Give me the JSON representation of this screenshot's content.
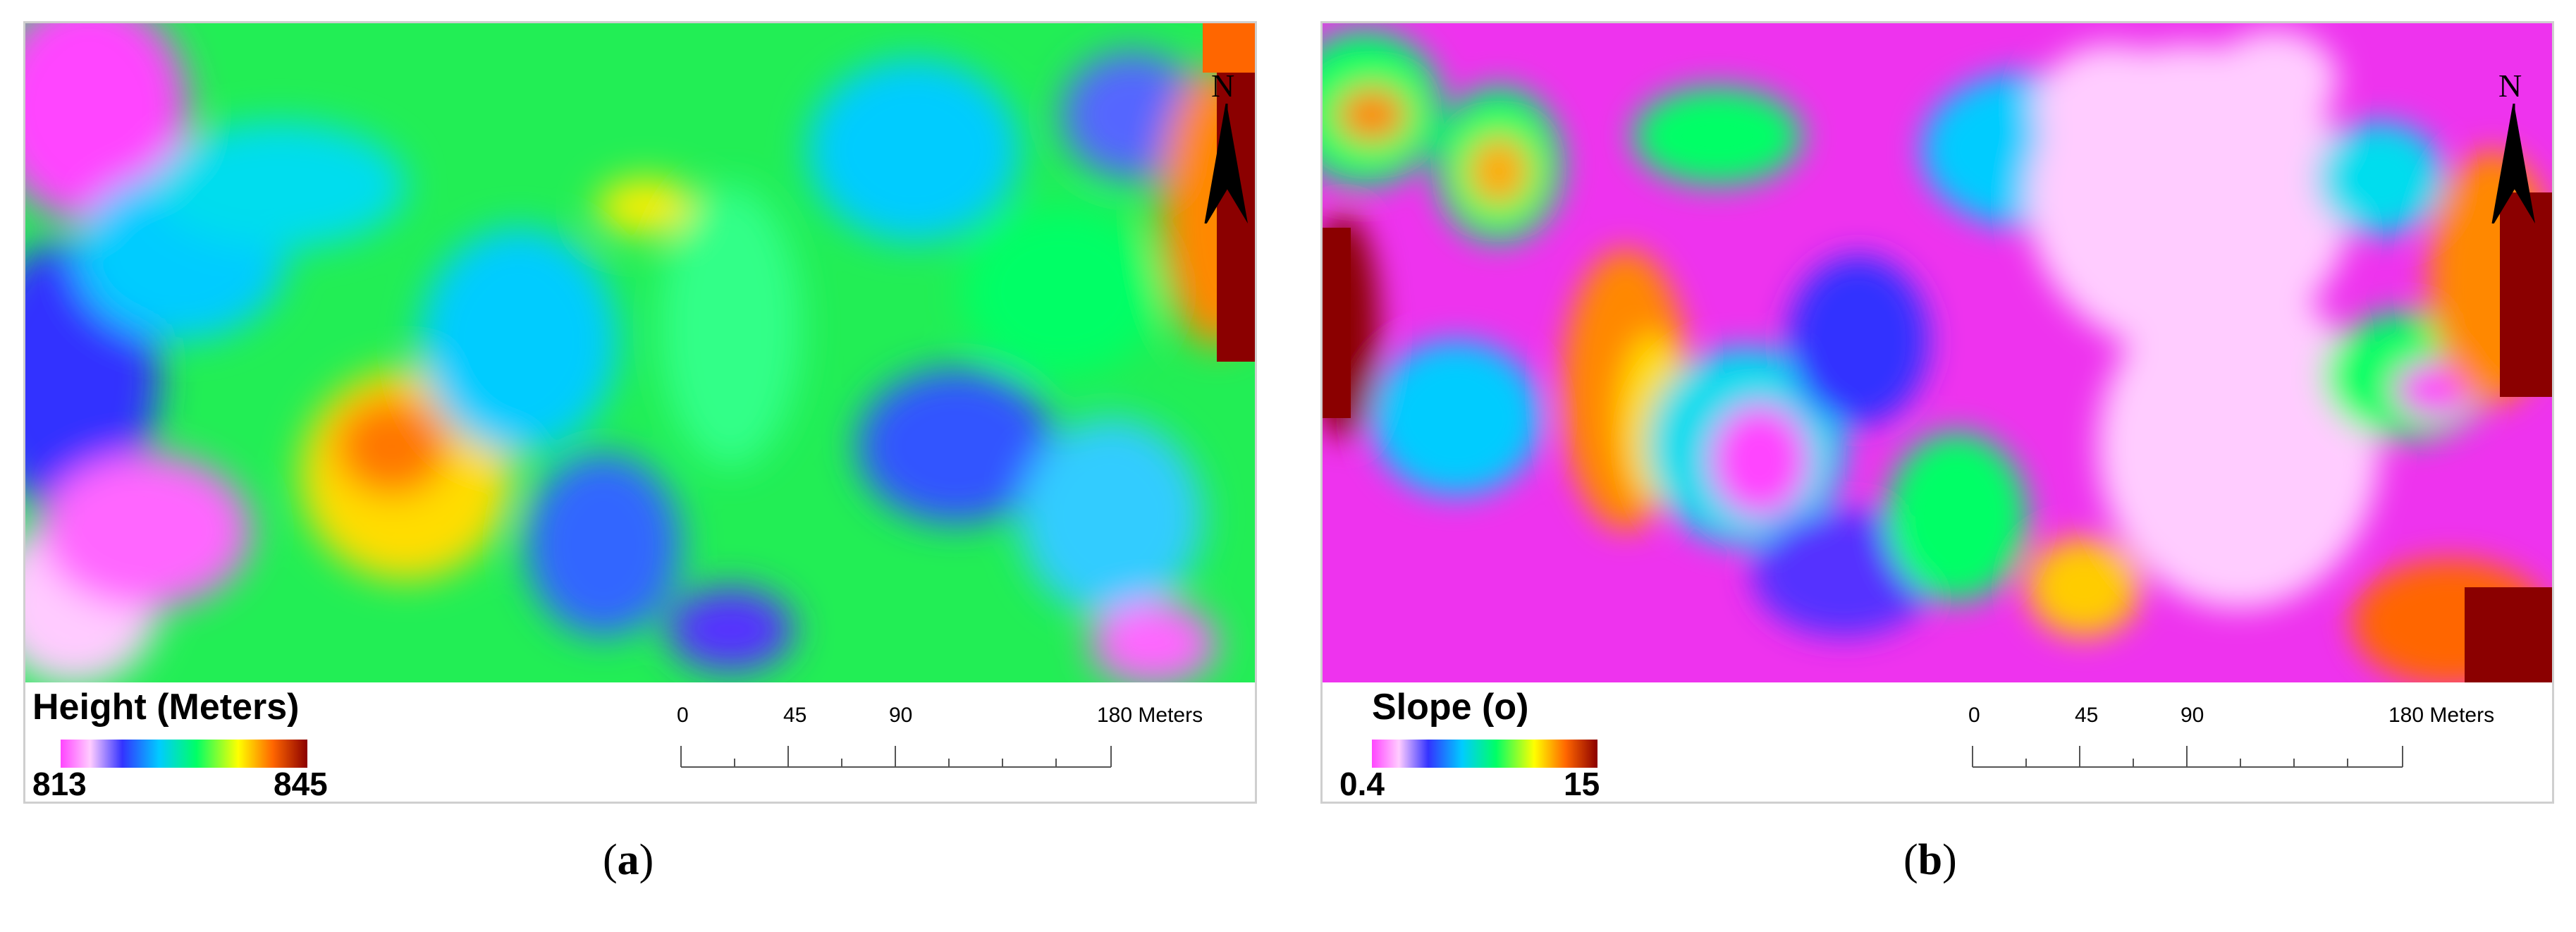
{
  "panels": {
    "a": {
      "legend": {
        "title": "Height (Meters)",
        "min": "813",
        "max": "845",
        "ramp": [
          "#ff44ff",
          "#ffccff",
          "#3333ff",
          "#00ccff",
          "#00ff66",
          "#ffff00",
          "#ff6600",
          "#8b0000"
        ]
      },
      "north_label": "N",
      "scale": {
        "labels": [
          "0",
          "45",
          "90",
          "180 Meters"
        ],
        "unit": "Meters",
        "ticks": [
          0,
          45,
          90,
          180
        ]
      },
      "caption_label": "a",
      "base_color": "#22ee55"
    },
    "b": {
      "legend": {
        "title": "Slope (o)",
        "min": "0.4",
        "max": "15",
        "ramp": [
          "#ff44ff",
          "#ffccff",
          "#3333ff",
          "#00ccff",
          "#00ff66",
          "#ffff00",
          "#ff6600",
          "#8b0000"
        ]
      },
      "north_label": "N",
      "scale": {
        "labels": [
          "0",
          "45",
          "90",
          "180 Meters"
        ],
        "unit": "Meters",
        "ticks": [
          0,
          45,
          90,
          180
        ]
      },
      "caption_label": "b",
      "base_color": "#ee33ee"
    }
  },
  "caption_open": "(",
  "caption_close": ")"
}
